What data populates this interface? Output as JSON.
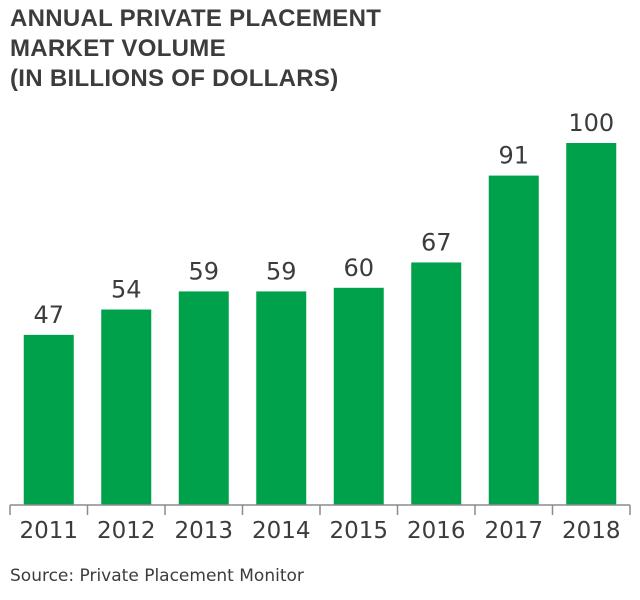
{
  "chart_data": {
    "type": "bar",
    "title_lines": [
      "ANNUAL PRIVATE PLACEMENT",
      "MARKET VOLUME",
      "(IN BILLIONS OF DOLLARS)"
    ],
    "categories": [
      "2011",
      "2012",
      "2013",
      "2014",
      "2015",
      "2016",
      "2017",
      "2018"
    ],
    "values": [
      47,
      54,
      59,
      59,
      60,
      67,
      91,
      100
    ],
    "data_labels": [
      "47",
      "54",
      "59",
      "59",
      "60",
      "67",
      "91",
      "100"
    ],
    "bar_color": "#00a14b",
    "axis_color": "#8c8c8c",
    "text_color": "#3c3c3c",
    "ylim": [
      0,
      100
    ],
    "grid": false,
    "legend": "none"
  },
  "source": "Source: Private Placement Monitor"
}
